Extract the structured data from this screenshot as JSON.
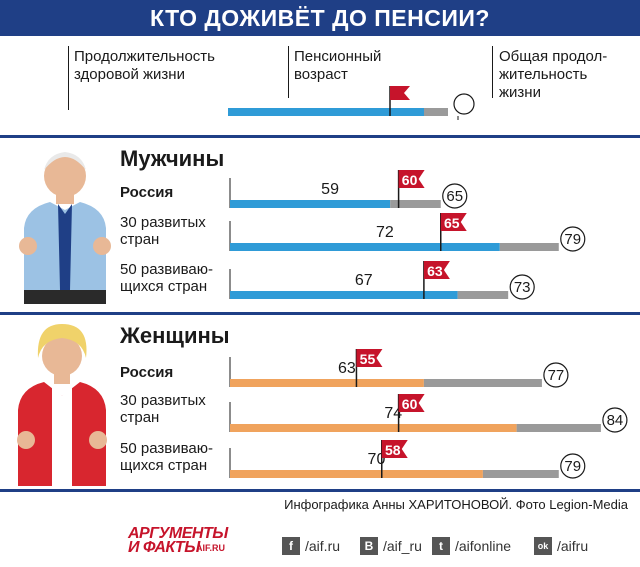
{
  "title": "КТО ДОЖИВЁТ ДО ПЕНСИИ?",
  "legend": {
    "healthy": [
      "Продолжительность",
      "здоровой жизни"
    ],
    "pension": [
      "Пенсионный",
      "возраст"
    ],
    "total": [
      "Общая продол-",
      "жительность",
      "жизни"
    ]
  },
  "sections": [
    {
      "title": "Мужчины",
      "rows": [
        {
          "label": [
            "Россия"
          ],
          "bold": true,
          "healthy": 59,
          "pension": 60,
          "total": 65
        },
        {
          "label": [
            "30 развитых",
            "стран"
          ],
          "bold": false,
          "healthy": 72,
          "pension": 65,
          "total": 79
        },
        {
          "label": [
            "50 развиваю-",
            "щихся стран"
          ],
          "bold": false,
          "healthy": 67,
          "pension": 63,
          "total": 73
        }
      ]
    },
    {
      "title": "Женщины",
      "rows": [
        {
          "label": [
            "Россия"
          ],
          "bold": true,
          "healthy": 63,
          "pension": 55,
          "total": 77
        },
        {
          "label": [
            "30 развитых",
            "стран"
          ],
          "bold": false,
          "healthy": 74,
          "pension": 60,
          "total": 84
        },
        {
          "label": [
            "50 развиваю-",
            "щихся стран"
          ],
          "bold": false,
          "healthy": 70,
          "pension": 58,
          "total": 79
        }
      ]
    }
  ],
  "credit": "Инфографика Анны ХАРИТОНОВОЙ. Фото Legion-Media",
  "brand": {
    "line1": "АРГУМЕНТЫ",
    "line2": "И ФАКТЫ",
    "site": "AIF.RU"
  },
  "social": [
    {
      "icon": "f",
      "label": "/aif.ru",
      "name": "facebook-icon"
    },
    {
      "icon": "B",
      "label": "/aif_ru",
      "name": "vk-icon"
    },
    {
      "icon": "t",
      "label": "/aifonline",
      "name": "twitter-icon"
    },
    {
      "icon": "ok",
      "label": "/aifru",
      "name": "odnoklassniki-icon"
    }
  ],
  "colors": {
    "men_bar": "#2f9bd7",
    "women_bar": "#f0a35d",
    "gray_bar": "#9a9a9a",
    "flag": "#c6142b",
    "title_bg": "#1f3f86"
  },
  "chart_data": {
    "type": "bar",
    "title": "КТО ДОЖИВЁТ ДО ПЕНСИИ?",
    "categories": [
      "Россия",
      "30 развитых стран",
      "50 развивающихся стран"
    ],
    "groups": [
      {
        "name": "Мужчины",
        "series": [
          {
            "name": "Продолжительность здоровой жизни",
            "values": [
              59,
              72,
              67
            ]
          },
          {
            "name": "Пенсионный возраст",
            "values": [
              60,
              65,
              63
            ]
          },
          {
            "name": "Общая продолжительность жизни",
            "values": [
              65,
              79,
              73
            ]
          }
        ]
      },
      {
        "name": "Женщины",
        "series": [
          {
            "name": "Продолжительность здоровой жизни",
            "values": [
              63,
              74,
              70
            ]
          },
          {
            "name": "Пенсионный возраст",
            "values": [
              55,
              60,
              58
            ]
          },
          {
            "name": "Общая продолжительность жизни",
            "values": [
              77,
              84,
              79
            ]
          }
        ]
      }
    ]
  }
}
